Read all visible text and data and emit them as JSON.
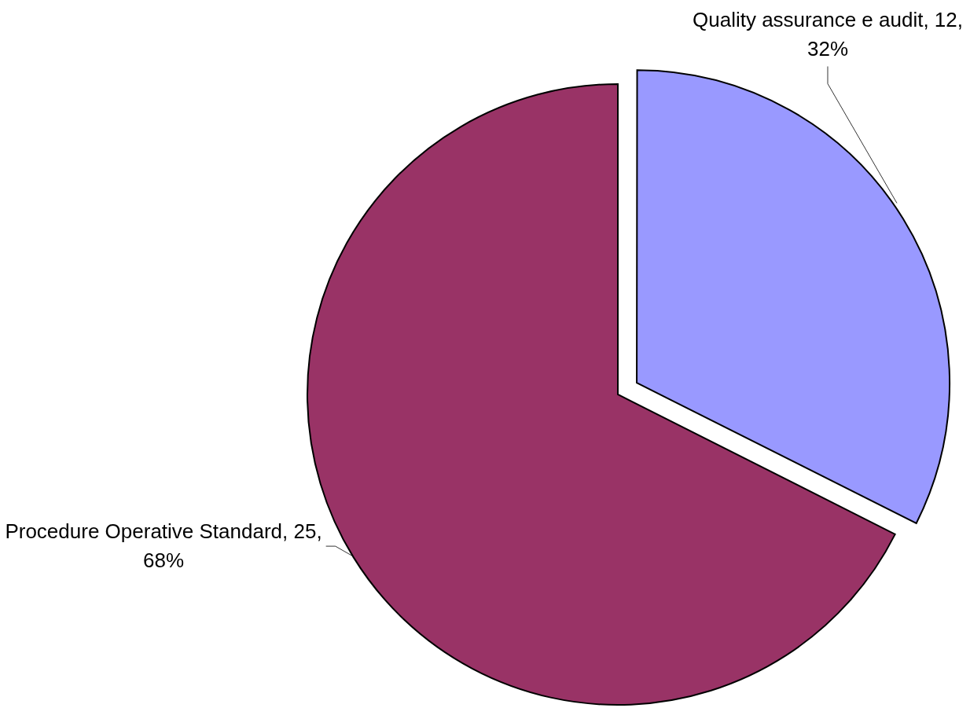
{
  "chart_data": {
    "type": "pie",
    "categories": [
      "Quality assurance e audit",
      "Procedure Operative Standard"
    ],
    "values": [
      12,
      25
    ],
    "colors": [
      "#9999ff",
      "#993366"
    ],
    "value_labels": [
      "12, 32%",
      "25, 68%"
    ]
  }
}
